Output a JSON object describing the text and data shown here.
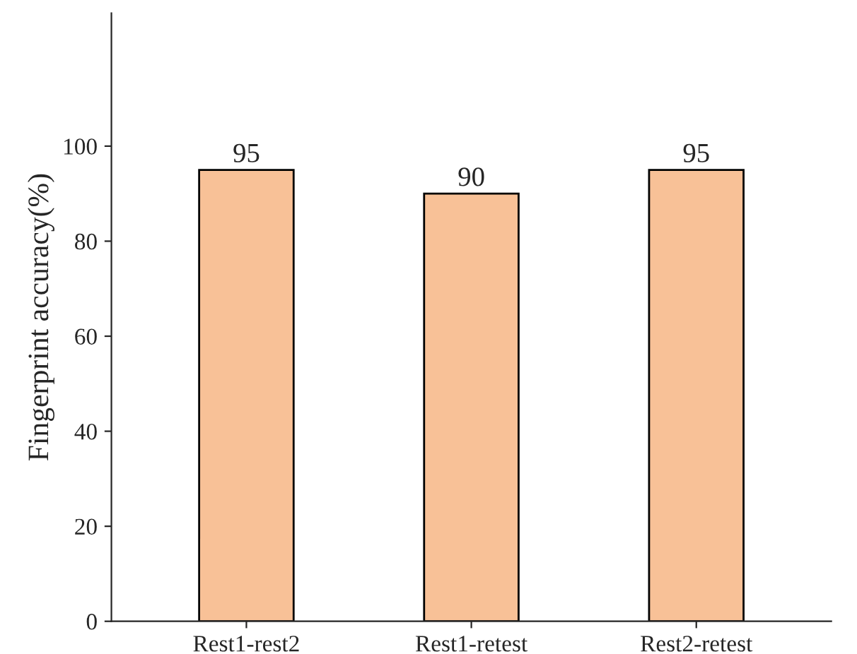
{
  "chart_data": {
    "type": "bar",
    "ylabel": "Fingerprint accuracy(%)",
    "categories": [
      "Rest1-rest2",
      "Rest1-retest",
      "Rest2-retest"
    ],
    "values": [
      95,
      90,
      95
    ],
    "color": "#f8c197",
    "data_labels": true,
    "ylim": [
      0,
      128
    ],
    "yticks": [
      0,
      20,
      40,
      60,
      80,
      100
    ],
    "grid": false
  }
}
